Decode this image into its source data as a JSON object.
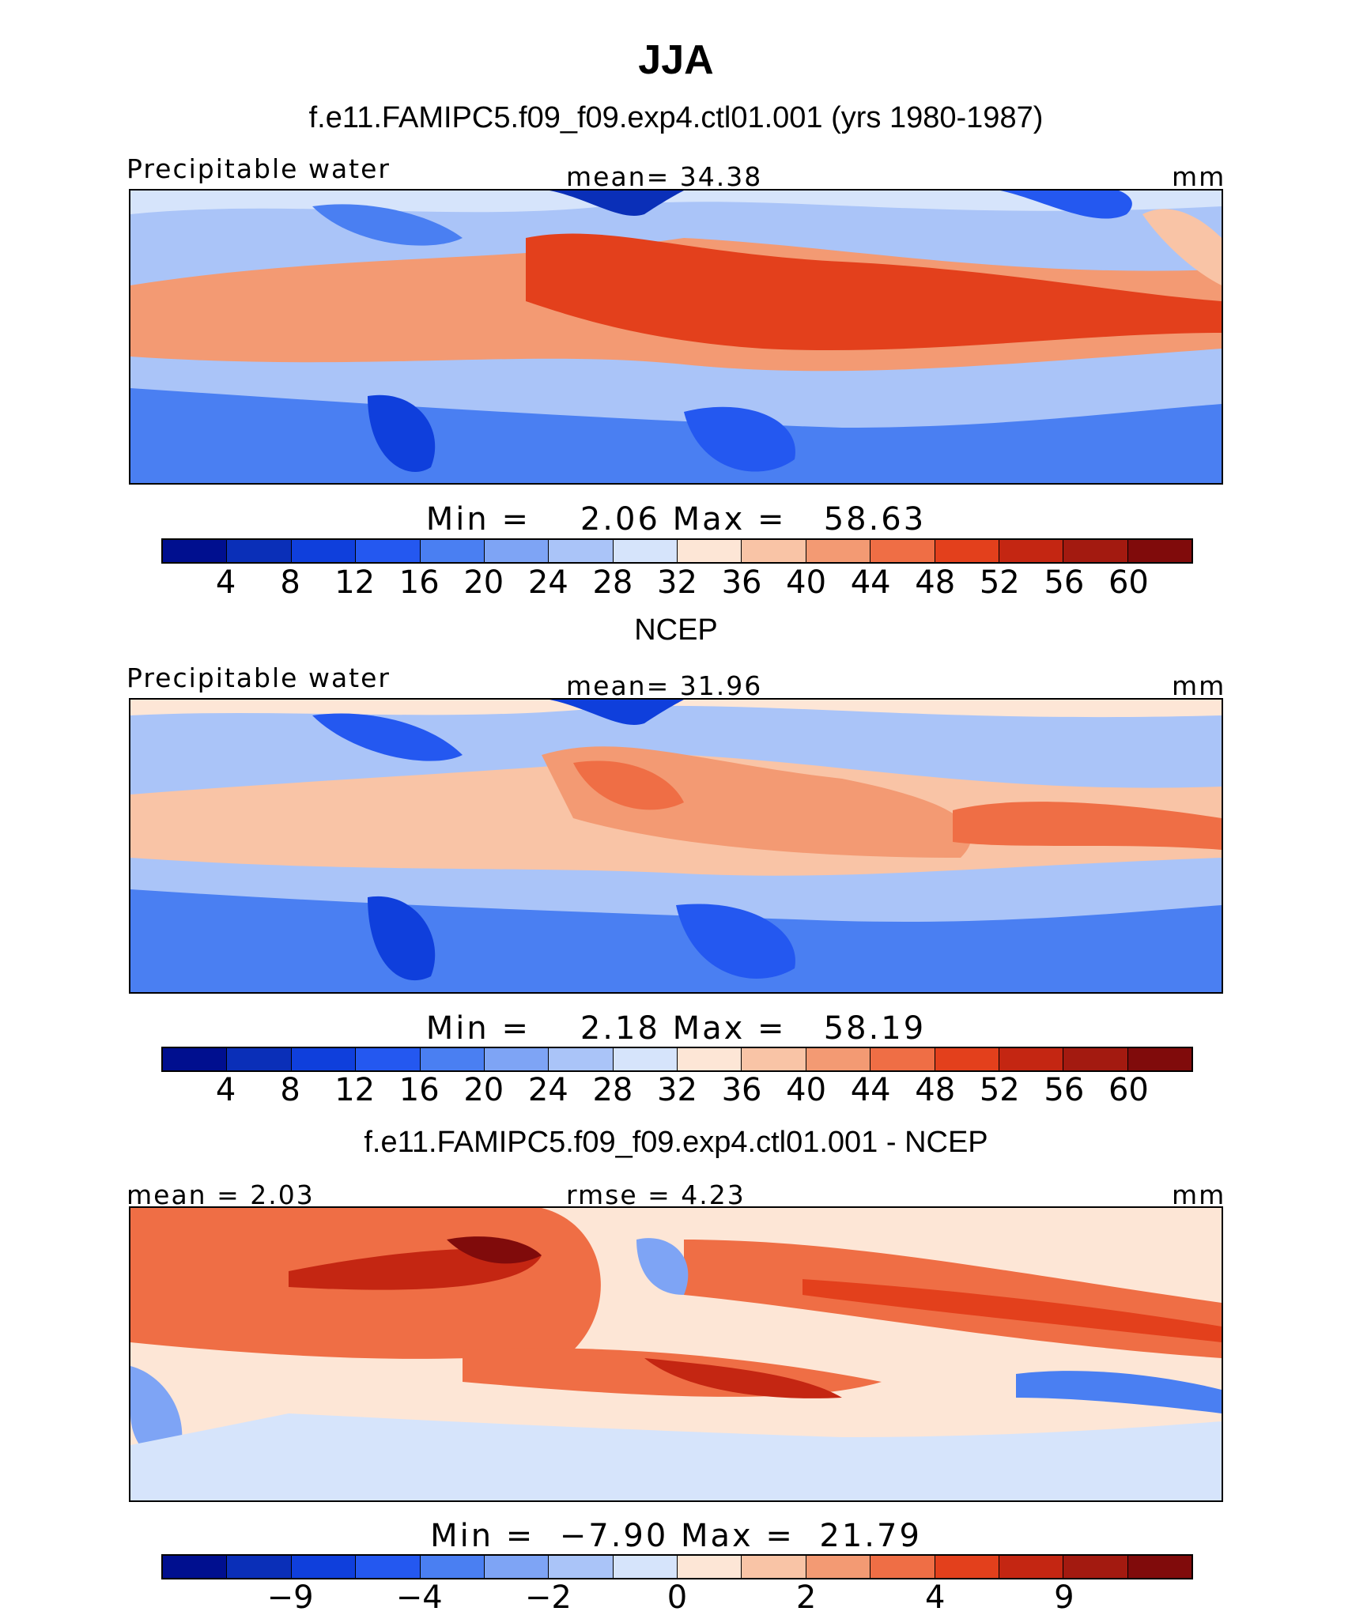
{
  "figure": {
    "title": "JJA",
    "subtitle_top": "f.e11.FAMIPC5.f09_f09.exp4.ctl01.001 (yrs 1980-1987)",
    "subtitle_mid": "NCEP",
    "subtitle_bot": "f.e11.FAMIPC5.f09_f09.exp4.ctl01.001 - NCEP"
  },
  "panels": [
    {
      "left_label": "Precipitable water",
      "center_label": "mean=   34.38",
      "unit": "mm",
      "minmax": "Min =    2.06 Max =   58.63",
      "ticks": [
        "4",
        "8",
        "12",
        "16",
        "20",
        "24",
        "28",
        "32",
        "36",
        "40",
        "44",
        "48",
        "52",
        "56",
        "60"
      ]
    },
    {
      "left_label": "Precipitable water",
      "center_label": "mean=   31.96",
      "unit": "mm",
      "minmax": "Min =    2.18 Max =   58.19",
      "ticks": [
        "4",
        "8",
        "12",
        "16",
        "20",
        "24",
        "28",
        "32",
        "36",
        "40",
        "44",
        "48",
        "52",
        "56",
        "60"
      ]
    },
    {
      "left_label": "mean =   2.03",
      "center_label": "rmse =   4.23",
      "unit": "mm",
      "minmax": "Min =  −7.90 Max =  21.79",
      "ticks": [
        "−9",
        "−4",
        "−2",
        "0",
        "2",
        "4",
        "9"
      ]
    }
  ],
  "colors": {
    "palette": [
      "#000f8f",
      "#0a2fb8",
      "#0f3fdc",
      "#2458f0",
      "#4a7ff2",
      "#7ea4f5",
      "#aac4f8",
      "#d6e4fb",
      "#fde6d6",
      "#f9c4a6",
      "#f39a73",
      "#ef6e45",
      "#e3401c",
      "#c42612",
      "#a31a10",
      "#800b0b"
    ]
  }
}
